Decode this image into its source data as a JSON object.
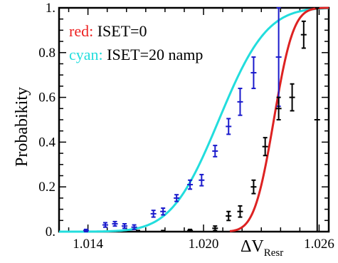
{
  "chart_data": {
    "type": "scatter",
    "xlabel": {
      "main": "ΔV",
      "sub": "Resr"
    },
    "ylabel": "Probabikity",
    "xlim": [
      1.0125,
      1.0265
    ],
    "ylim": [
      0,
      1
    ],
    "xticks": [
      1.014,
      1.02,
      1.026
    ],
    "xtick_labels": [
      "1.014",
      "1.020",
      "1.026"
    ],
    "yticks": [
      0,
      0.2,
      0.4,
      0.6,
      0.8,
      1
    ],
    "ytick_labels": [
      "0.",
      "0.2",
      "0.4",
      "0.6",
      "0.8",
      "1."
    ],
    "grid": false,
    "legend": [
      {
        "prefix": "red:",
        "text": "ISET=0",
        "color": "#ee2222"
      },
      {
        "prefix": "cyan:",
        "text": "ISET=20 namp",
        "color": "#22dddd"
      }
    ],
    "series": [
      {
        "marker_color": "#1a1acc",
        "fit_color": "#22dddd",
        "points": [
          {
            "x": 1.0139,
            "y": 0.005,
            "err": 0.005
          },
          {
            "x": 1.0149,
            "y": 0.03,
            "err": 0.01
          },
          {
            "x": 1.0154,
            "y": 0.035,
            "err": 0.01
          },
          {
            "x": 1.0159,
            "y": 0.025,
            "err": 0.01
          },
          {
            "x": 1.0164,
            "y": 0.02,
            "err": 0.01
          },
          {
            "x": 1.0174,
            "y": 0.08,
            "err": 0.015
          },
          {
            "x": 1.0179,
            "y": 0.09,
            "err": 0.015
          },
          {
            "x": 1.0186,
            "y": 0.15,
            "err": 0.015
          },
          {
            "x": 1.0193,
            "y": 0.21,
            "err": 0.02
          },
          {
            "x": 1.0199,
            "y": 0.23,
            "err": 0.025
          },
          {
            "x": 1.0206,
            "y": 0.36,
            "err": 0.025
          },
          {
            "x": 1.0213,
            "y": 0.47,
            "err": 0.035
          },
          {
            "x": 1.0219,
            "y": 0.58,
            "err": 0.06
          },
          {
            "x": 1.0226,
            "y": 0.71,
            "err": 0.07
          },
          {
            "x": 1.0239,
            "y": 0.78,
            "err": 0.22
          }
        ],
        "fit": {
          "mu": 1.0208,
          "sigma": 0.00195
        }
      },
      {
        "marker_color": "#000000",
        "fit_color": "#dd2222",
        "points": [
          {
            "x": 1.0166,
            "y": 0.0,
            "err": 0.005
          },
          {
            "x": 1.0179,
            "y": 0.0,
            "err": 0.005
          },
          {
            "x": 1.0193,
            "y": 0.005,
            "err": 0.005
          },
          {
            "x": 1.0206,
            "y": 0.015,
            "err": 0.01
          },
          {
            "x": 1.0213,
            "y": 0.07,
            "err": 0.02
          },
          {
            "x": 1.0219,
            "y": 0.09,
            "err": 0.025
          },
          {
            "x": 1.0226,
            "y": 0.2,
            "err": 0.03
          },
          {
            "x": 1.0232,
            "y": 0.38,
            "err": 0.04
          },
          {
            "x": 1.0239,
            "y": 0.55,
            "err": 0.05
          },
          {
            "x": 1.0246,
            "y": 0.6,
            "err": 0.06
          },
          {
            "x": 1.0252,
            "y": 0.88,
            "err": 0.06
          },
          {
            "x": 1.0259,
            "y": 0.5,
            "err": 0.5
          }
        ],
        "fit": {
          "mu": 1.02365,
          "sigma": 0.0008
        }
      }
    ]
  }
}
